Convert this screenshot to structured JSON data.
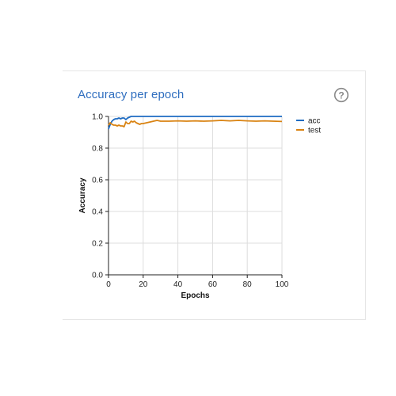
{
  "card": {
    "title": "Accuracy per epoch",
    "help_icon": "help-circle-icon"
  },
  "colors": {
    "title": "#2f6ebf",
    "acc": "#1f6cc2",
    "test": "#d98312",
    "grid": "#dddddd",
    "axis": "#222222"
  },
  "chart_data": {
    "type": "line",
    "title": "",
    "xlabel": "Epochs",
    "ylabel": "Accuracy",
    "xlim": [
      0,
      100
    ],
    "ylim": [
      0,
      1.0
    ],
    "xticks": [
      0,
      20,
      40,
      60,
      80,
      100
    ],
    "xtick_labels": [
      "0",
      "20",
      "40",
      "60",
      "80",
      "100"
    ],
    "yticks": [
      0,
      0.2,
      0.4,
      0.6,
      0.8,
      1.0
    ],
    "ytick_labels": [
      "0.0",
      "0.2",
      "0.4",
      "0.6",
      "0.8",
      "1.0"
    ],
    "grid": true,
    "legend": "right",
    "series": [
      {
        "name": "acc",
        "color": "#1f6cc2",
        "x": [
          0,
          1,
          2,
          3,
          4,
          5,
          6,
          7,
          8,
          9,
          10,
          11,
          12,
          13,
          14,
          15,
          20,
          30,
          40,
          50,
          60,
          70,
          80,
          90,
          100
        ],
        "y": [
          0.92,
          0.95,
          0.97,
          0.98,
          0.985,
          0.985,
          0.99,
          0.985,
          0.99,
          0.99,
          0.98,
          0.99,
          0.995,
          1.0,
          1.0,
          1.0,
          1.0,
          1.0,
          1.0,
          1.0,
          1.0,
          1.0,
          1.0,
          1.0,
          1.0
        ]
      },
      {
        "name": "test",
        "color": "#d98312",
        "x": [
          0,
          1,
          2,
          3,
          4,
          5,
          6,
          7,
          8,
          9,
          10,
          11,
          12,
          13,
          14,
          15,
          16,
          17,
          18,
          19,
          20,
          22,
          24,
          26,
          28,
          30,
          35,
          40,
          45,
          50,
          55,
          60,
          65,
          70,
          75,
          80,
          85,
          90,
          95,
          100
        ],
        "y": [
          0.945,
          0.96,
          0.95,
          0.945,
          0.945,
          0.94,
          0.945,
          0.94,
          0.94,
          0.935,
          0.965,
          0.955,
          0.955,
          0.97,
          0.965,
          0.97,
          0.96,
          0.955,
          0.95,
          0.955,
          0.955,
          0.96,
          0.965,
          0.97,
          0.975,
          0.97,
          0.97,
          0.972,
          0.97,
          0.972,
          0.97,
          0.972,
          0.975,
          0.972,
          0.975,
          0.972,
          0.97,
          0.972,
          0.97,
          0.968
        ]
      }
    ]
  }
}
